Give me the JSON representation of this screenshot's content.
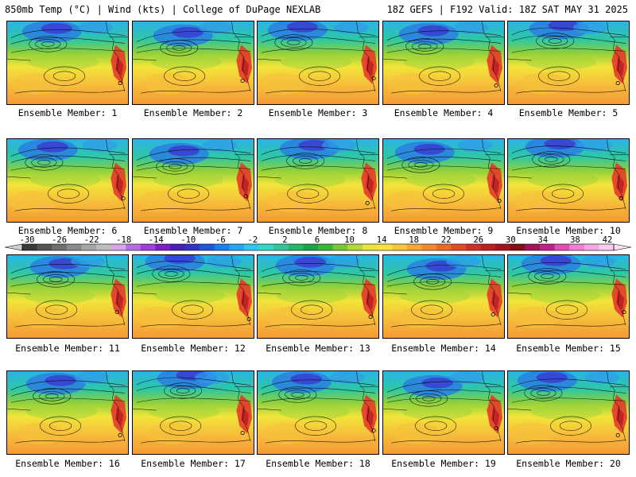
{
  "header": {
    "left": "850mb Temp (°C) | Wind (kts) | College of DuPage NEXLAB",
    "right": "18Z GEFS | F192 Valid: 18Z SAT MAY 31 2025"
  },
  "colorbar": {
    "tick_labels": [
      "-30",
      "-26",
      "-22",
      "-18",
      "-14",
      "-10",
      "-6",
      "-2",
      "2",
      "6",
      "10",
      "14",
      "18",
      "22",
      "26",
      "30",
      "34",
      "38",
      "42"
    ],
    "colors": [
      "#3a3a3a",
      "#555555",
      "#6f6f6f",
      "#8a8a8a",
      "#a5a5a5",
      "#bdbdbd",
      "#d4a6e6",
      "#b46ee0",
      "#9f40d8",
      "#7a1fc2",
      "#4a1fb6",
      "#3333cc",
      "#2255e0",
      "#1f7fe8",
      "#23a7f0",
      "#2ec7ee",
      "#32d7c6",
      "#2fc79a",
      "#27b56b",
      "#1fa34a",
      "#3cb43a",
      "#79c63a",
      "#b4d73a",
      "#e8e43a",
      "#fce53a",
      "#f9c83a",
      "#f5a83a",
      "#f08a32",
      "#ea6a2c",
      "#e24a28",
      "#d52b25",
      "#c01f22",
      "#a0161e",
      "#80101a",
      "#a0145a",
      "#c41e88",
      "#e04fb0",
      "#ef7fd0",
      "#f5a9e2",
      "#f9cbee"
    ]
  },
  "members": [
    {
      "label": "Ensemble Member: 1"
    },
    {
      "label": "Ensemble Member: 2"
    },
    {
      "label": "Ensemble Member: 3"
    },
    {
      "label": "Ensemble Member: 4"
    },
    {
      "label": "Ensemble Member: 5"
    },
    {
      "label": "Ensemble Member: 6"
    },
    {
      "label": "Ensemble Member: 7"
    },
    {
      "label": "Ensemble Member: 8"
    },
    {
      "label": "Ensemble Member: 9"
    },
    {
      "label": "Ensemble Member: 10"
    },
    {
      "label": "Ensemble Member: 11"
    },
    {
      "label": "Ensemble Member: 12"
    },
    {
      "label": "Ensemble Member: 13"
    },
    {
      "label": "Ensemble Member: 14"
    },
    {
      "label": "Ensemble Member: 15"
    },
    {
      "label": "Ensemble Member: 16"
    },
    {
      "label": "Ensemble Member: 17"
    },
    {
      "label": "Ensemble Member: 18"
    },
    {
      "label": "Ensemble Member: 19"
    },
    {
      "label": "Ensemble Member: 20"
    }
  ]
}
